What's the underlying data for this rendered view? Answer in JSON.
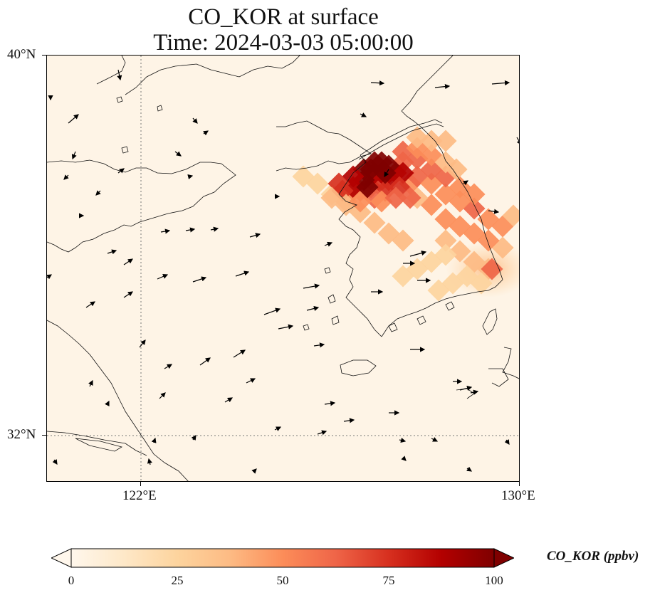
{
  "title": "CO_KOR at surface",
  "subtitle": "Time: 2024-03-03 05:00:00",
  "axes": {
    "lat_labels": [
      "40°N",
      "32°N"
    ],
    "lon_labels": [
      "122°E",
      "130°E"
    ]
  },
  "colorbar": {
    "title": "CO_KOR (ppbv)",
    "ticks": [
      "0",
      "25",
      "50",
      "75",
      "100"
    ],
    "cmap": "OrRd",
    "colors": [
      "#fff7ec",
      "#fee8c8",
      "#fdd49e",
      "#fdbb84",
      "#fc8d59",
      "#ef6548",
      "#d7301f",
      "#b30000",
      "#7f0000"
    ],
    "extend": "both"
  },
  "map": {
    "extent_lon": [
      120,
      130
    ],
    "extent_lat": [
      31,
      40
    ],
    "gridlines": {
      "lon": [
        122
      ],
      "lat": [
        32
      ],
      "style": "dotted"
    },
    "overlay": "wind-vectors",
    "background_color": "#fef4e6"
  }
}
